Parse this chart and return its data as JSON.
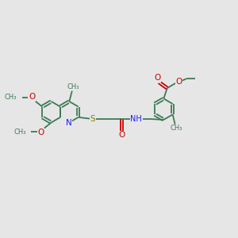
{
  "bg_color": "#e6e6e6",
  "bond_color": "#3d7a57",
  "n_color": "#1a1aff",
  "s_color": "#808000",
  "o_color": "#cc0000",
  "lw": 1.3,
  "fig_size": [
    3.0,
    3.0
  ],
  "dpi": 100,
  "xlim": [
    0,
    10
  ],
  "ylim": [
    0,
    10
  ]
}
